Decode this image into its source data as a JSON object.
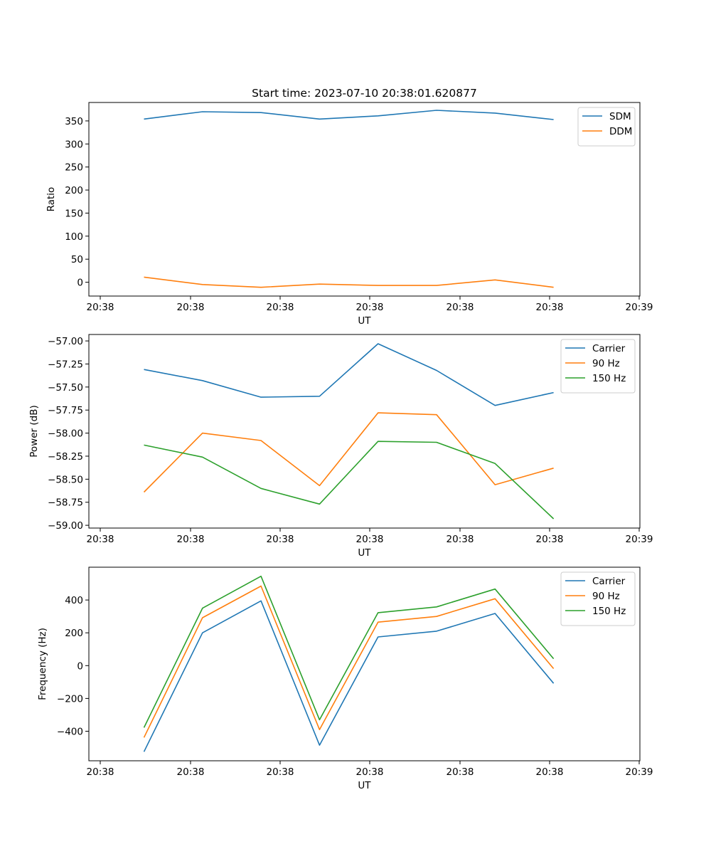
{
  "title": "Start time: 2023-07-10 20:38:01.620877",
  "colors": {
    "blue": "#1f77b4",
    "orange": "#ff7f0e",
    "green": "#2ca02c"
  },
  "chart_data": [
    {
      "type": "line",
      "title": "Start time: 2023-07-10 20:38:01.620877",
      "xlabel": "UT",
      "ylabel": "Ratio",
      "x": [
        1,
        2,
        3,
        4,
        5,
        6,
        7,
        8
      ],
      "x_tick_labels": [
        "20:38",
        "20:38",
        "20:38",
        "20:38",
        "20:38",
        "20:38",
        "20:39"
      ],
      "y_ticks": [
        0,
        50,
        100,
        150,
        200,
        250,
        300,
        350
      ],
      "y_tick_labels": [
        "0",
        "50",
        "100",
        "150",
        "200",
        "250",
        "300",
        "350"
      ],
      "ylim": [
        -30,
        390
      ],
      "legend_position": "top-right",
      "grid": false,
      "series": [
        {
          "name": "SDM",
          "color": "#1f77b4",
          "values": [
            354,
            370,
            368,
            354,
            361,
            373,
            367,
            353
          ]
        },
        {
          "name": "DDM",
          "color": "#ff7f0e",
          "values": [
            11,
            -5,
            -11,
            -4,
            -7,
            -7,
            5,
            -11
          ]
        }
      ]
    },
    {
      "type": "line",
      "title": "",
      "xlabel": "UT",
      "ylabel": "Power (dB)",
      "x": [
        1,
        2,
        3,
        4,
        5,
        6,
        7,
        8
      ],
      "x_tick_labels": [
        "20:38",
        "20:38",
        "20:38",
        "20:38",
        "20:38",
        "20:38",
        "20:39"
      ],
      "y_ticks": [
        -59.0,
        -58.75,
        -58.5,
        -58.25,
        -58.0,
        -57.75,
        -57.5,
        -57.25,
        -57.0
      ],
      "y_tick_labels": [
        "−59.00",
        "−58.75",
        "−58.50",
        "−58.25",
        "−58.00",
        "−57.75",
        "−57.50",
        "−57.25",
        "−57.00"
      ],
      "ylim": [
        -59.03,
        -56.93
      ],
      "legend_position": "top-right",
      "grid": false,
      "series": [
        {
          "name": "Carrier",
          "color": "#1f77b4",
          "values": [
            -57.31,
            -57.43,
            -57.61,
            -57.6,
            -57.03,
            -57.32,
            -57.7,
            -57.56
          ]
        },
        {
          "name": "90 Hz",
          "color": "#ff7f0e",
          "values": [
            -58.64,
            -58.0,
            -58.08,
            -58.57,
            -57.78,
            -57.8,
            -58.56,
            -58.38
          ]
        },
        {
          "name": "150 Hz",
          "color": "#2ca02c",
          "values": [
            -58.13,
            -58.26,
            -58.6,
            -58.77,
            -58.09,
            -58.1,
            -58.33,
            -58.93
          ]
        }
      ]
    },
    {
      "type": "line",
      "title": "",
      "xlabel": "UT",
      "ylabel": "Frequency (Hz)",
      "x": [
        1,
        2,
        3,
        4,
        5,
        6,
        7,
        8
      ],
      "x_tick_labels": [
        "20:38",
        "20:38",
        "20:38",
        "20:38",
        "20:38",
        "20:38",
        "20:39"
      ],
      "y_ticks": [
        -400,
        -200,
        0,
        200,
        400
      ],
      "y_tick_labels": [
        "−400",
        "−200",
        "0",
        "200",
        "400"
      ],
      "ylim": [
        -580,
        600
      ],
      "legend_position": "top-right",
      "grid": false,
      "series": [
        {
          "name": "Carrier",
          "color": "#1f77b4",
          "values": [
            -525,
            200,
            395,
            -485,
            175,
            210,
            318,
            -108
          ]
        },
        {
          "name": "90 Hz",
          "color": "#ff7f0e",
          "values": [
            -438,
            292,
            485,
            -390,
            265,
            300,
            408,
            -18
          ]
        },
        {
          "name": "150 Hz",
          "color": "#2ca02c",
          "values": [
            -378,
            350,
            545,
            -330,
            323,
            358,
            467,
            42
          ]
        }
      ]
    }
  ]
}
